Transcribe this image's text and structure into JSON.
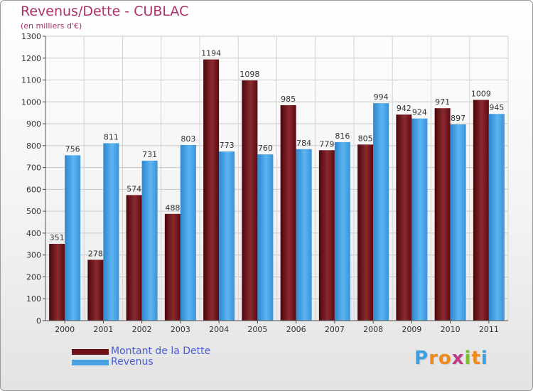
{
  "title": "Revenus/Dette - CUBLAC",
  "subtitle": "(en milliers d'€)",
  "logo": {
    "text": "Proxiti",
    "letters": [
      "P",
      "r",
      "o",
      "x",
      "i",
      "t",
      "i"
    ],
    "colors": [
      "#3aa0e0",
      "#f08a1c",
      "#f08a1c",
      "#c03a8a",
      "#7bbf2a",
      "#f08a1c",
      "#3aa0e0"
    ]
  },
  "colors": {
    "debt": "#6e0f16",
    "revenue": "#4aa2e4",
    "title": "#b0306a",
    "legend_text": "#4a5cd6"
  },
  "chart_data": {
    "type": "bar",
    "categories": [
      "2000",
      "2001",
      "2002",
      "2003",
      "2004",
      "2005",
      "2006",
      "2007",
      "2008",
      "2009",
      "2010",
      "2011"
    ],
    "series": [
      {
        "name": "Montant de la Dette",
        "values": [
          351,
          278,
          574,
          488,
          1194,
          1098,
          985,
          779,
          805,
          942,
          971,
          1009
        ]
      },
      {
        "name": "Revenus",
        "values": [
          756,
          811,
          731,
          803,
          773,
          760,
          784,
          816,
          994,
          924,
          897,
          945
        ]
      }
    ],
    "ylim": [
      0,
      1300
    ],
    "yticks": [
      0,
      100,
      200,
      300,
      400,
      500,
      600,
      700,
      800,
      900,
      1000,
      1100,
      1200,
      1300
    ],
    "grid": true,
    "legend": "bottom-left"
  }
}
